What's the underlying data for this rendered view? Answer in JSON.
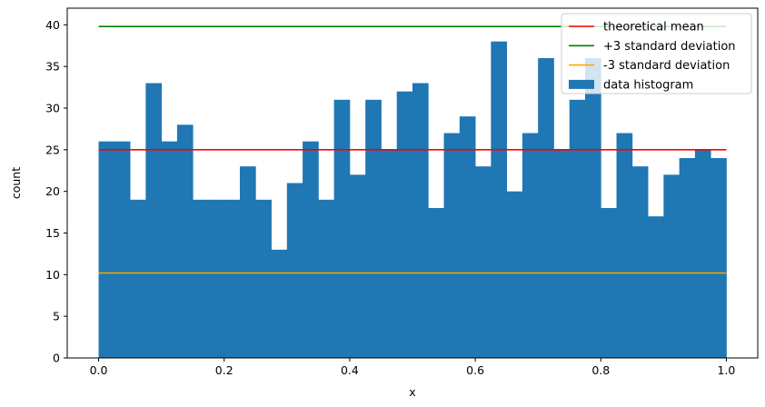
{
  "chart_data": {
    "type": "bar",
    "xlabel": "x",
    "ylabel": "count",
    "xlim": [
      -0.05,
      1.05
    ],
    "ylim": [
      0,
      42
    ],
    "xticks": [
      0.0,
      0.2,
      0.4,
      0.6,
      0.8,
      1.0
    ],
    "xtick_labels": [
      "0.0",
      "0.2",
      "0.4",
      "0.6",
      "0.8",
      "1.0"
    ],
    "yticks": [
      0,
      5,
      10,
      15,
      20,
      25,
      30,
      35,
      40
    ],
    "ytick_labels": [
      "0",
      "5",
      "10",
      "15",
      "20",
      "25",
      "30",
      "35",
      "40"
    ],
    "grid": false,
    "legend_position": "top-right",
    "histogram": {
      "name": "data histogram",
      "color": "#1f77b4",
      "bin_range": [
        0.0,
        1.0
      ],
      "counts": [
        26,
        26,
        19,
        33,
        26,
        28,
        19,
        19,
        19,
        23,
        19,
        13,
        21,
        26,
        19,
        31,
        22,
        31,
        25,
        32,
        33,
        18,
        27,
        29,
        23,
        38,
        20,
        27,
        36,
        25,
        31,
        36,
        18,
        27,
        23,
        17,
        22,
        24,
        25,
        24
      ]
    },
    "lines": [
      {
        "name": "theoretical mean",
        "color": "#ff0000",
        "y": 25.0,
        "x_range": [
          0.0,
          1.0
        ]
      },
      {
        "name": "+3 standard deviation",
        "color": "#008000",
        "y": 39.8,
        "x_range": [
          0.0,
          1.0
        ]
      },
      {
        "name": "-3 standard deviation",
        "color": "#ffa500",
        "y": 10.2,
        "x_range": [
          0.0,
          1.0
        ]
      }
    ]
  }
}
